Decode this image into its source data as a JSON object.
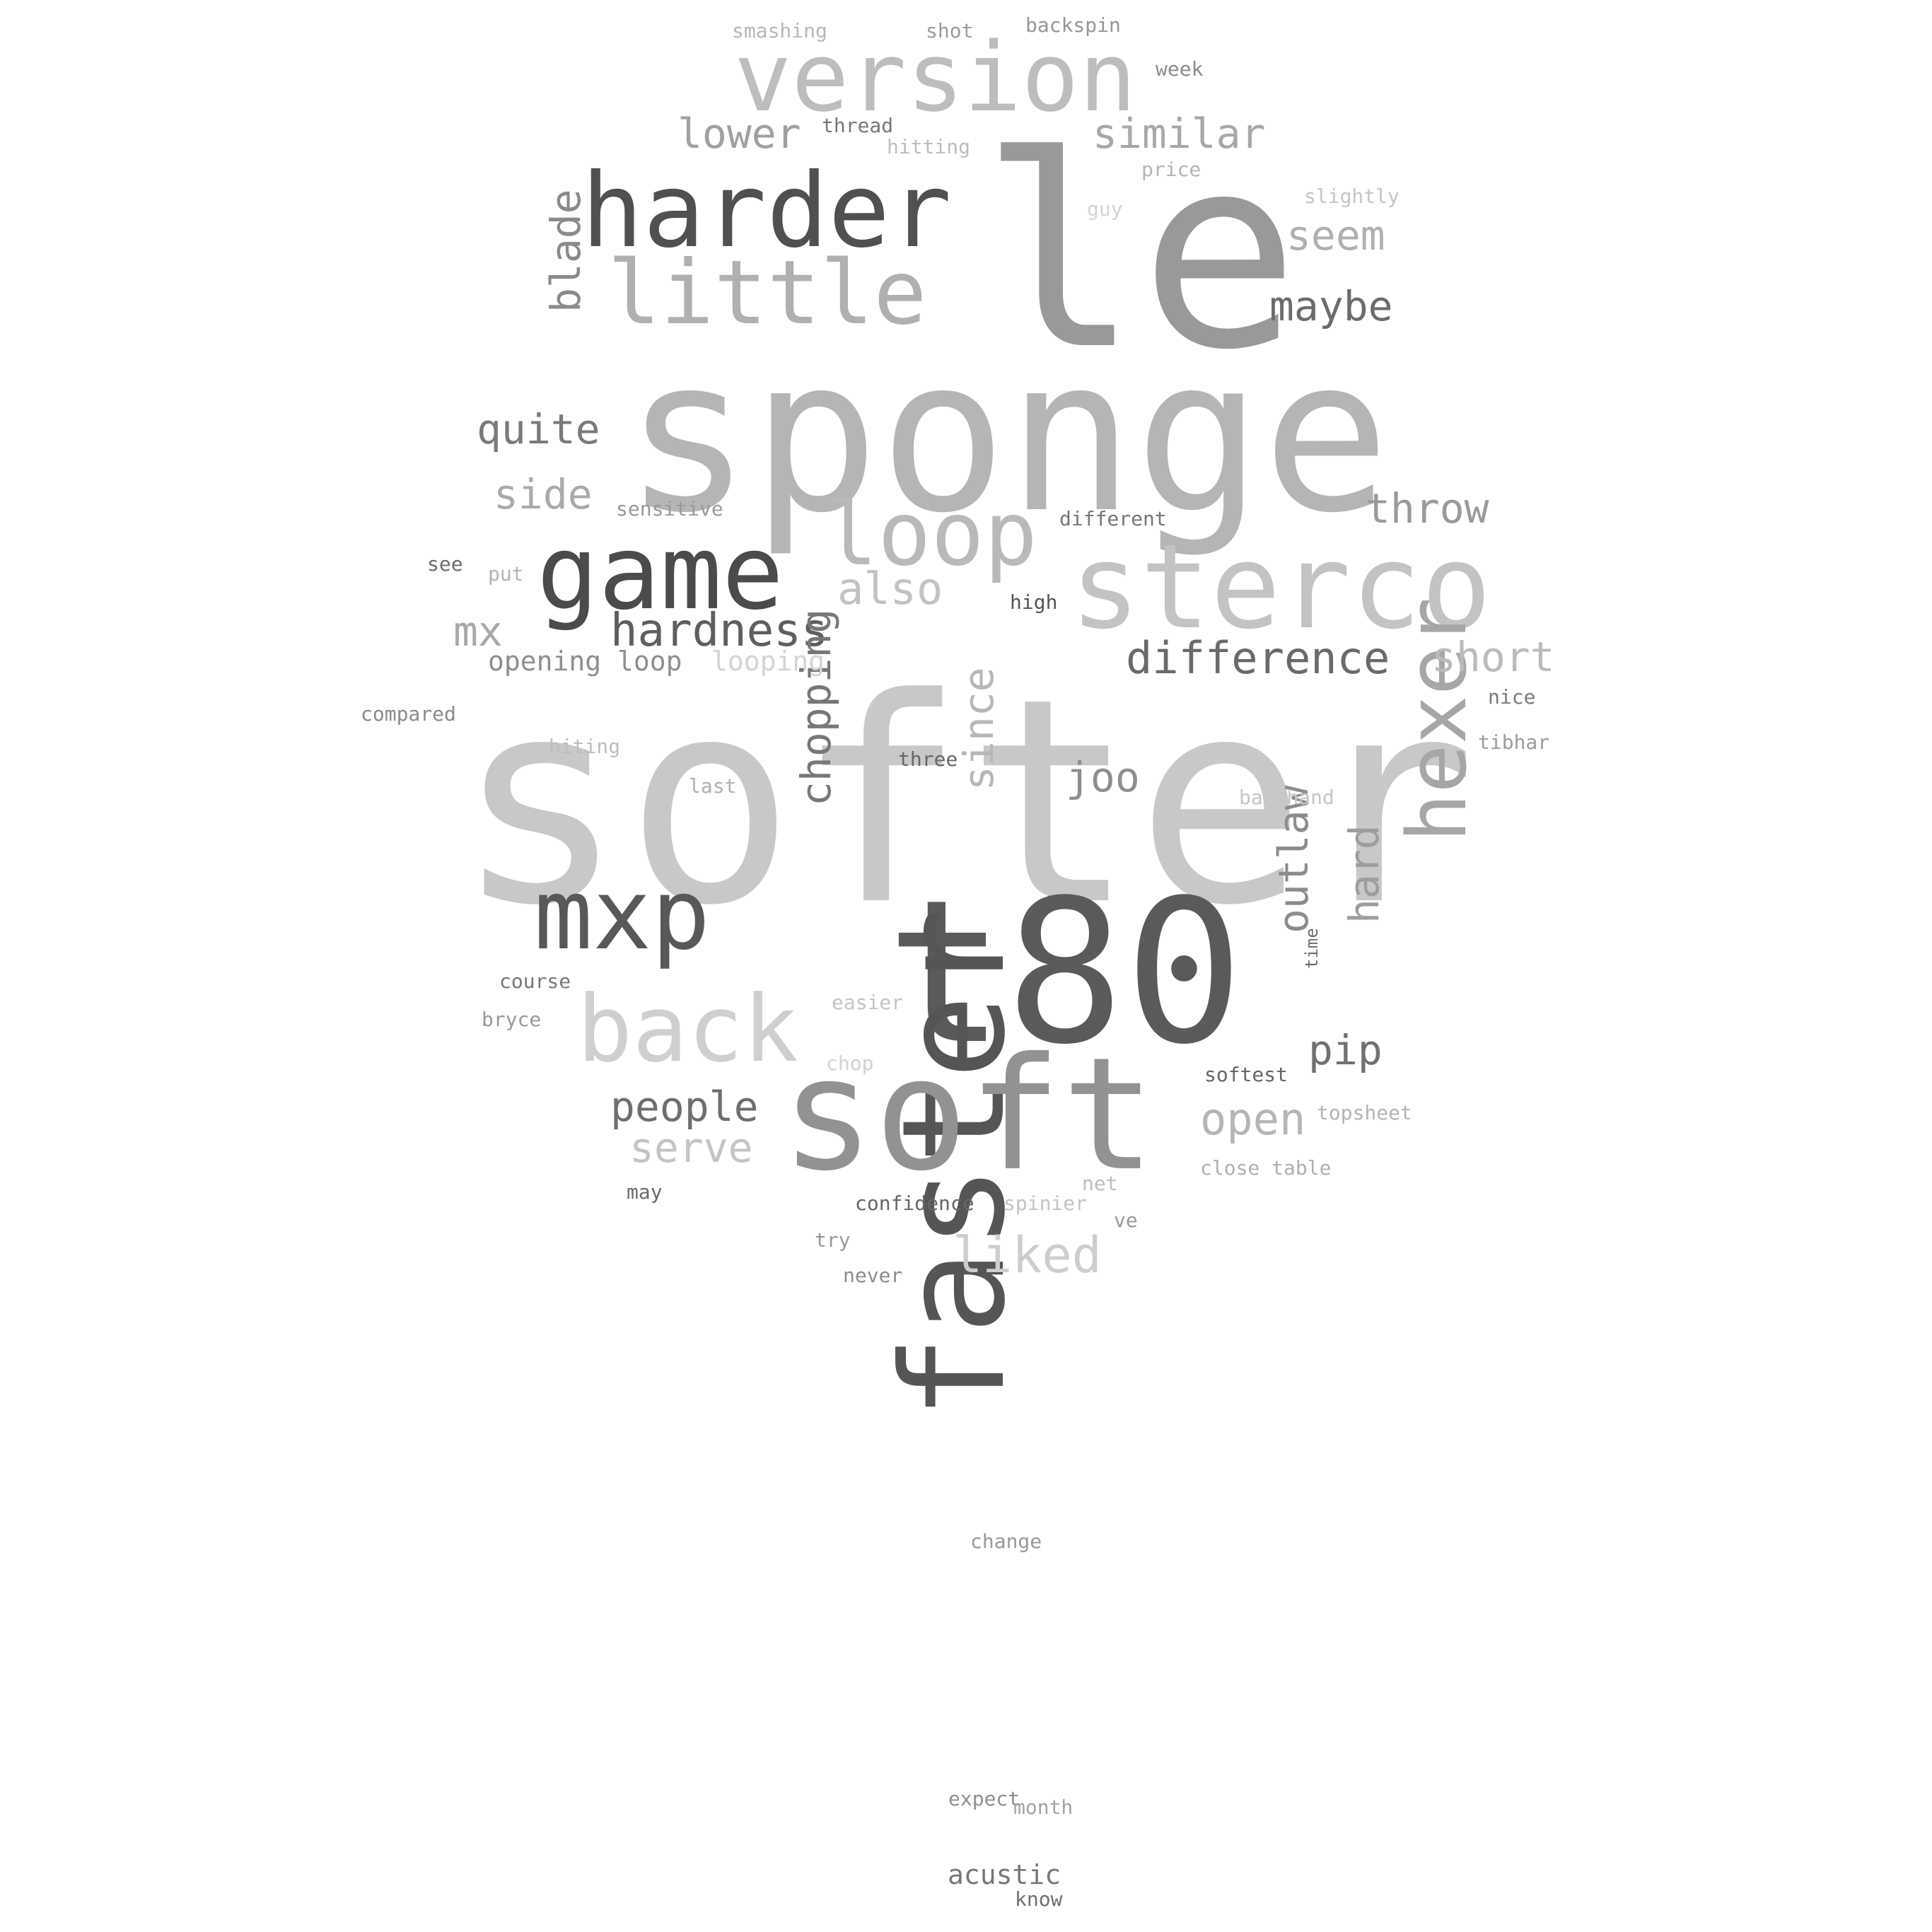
{
  "words": [
    {
      "text": "softer",
      "color": "#c8c8c8",
      "vertical": false
    },
    {
      "text": "sponge",
      "color": "#b5b5b5",
      "vertical": false
    },
    {
      "text": "le",
      "color": "#999999",
      "vertical": false
    },
    {
      "text": "t80",
      "color": "#5a5a5a",
      "vertical": false
    },
    {
      "text": "faster",
      "color": "#555555",
      "vertical": true
    },
    {
      "text": "soft",
      "color": "#929292",
      "vertical": false
    },
    {
      "text": "sterco",
      "color": "#c3c3c3",
      "vertical": false
    },
    {
      "text": "version",
      "color": "#bdbdbd",
      "vertical": false
    },
    {
      "text": "harder",
      "color": "#505050",
      "vertical": false
    },
    {
      "text": "game",
      "color": "#4b4b4b",
      "vertical": false
    },
    {
      "text": "little",
      "color": "#b0b0b0",
      "vertical": false
    },
    {
      "text": "loop",
      "color": "#b9b9b9",
      "vertical": false
    },
    {
      "text": "mxp",
      "color": "#585858",
      "vertical": false
    },
    {
      "text": "back",
      "color": "#cfcfcf",
      "vertical": false
    },
    {
      "text": "hexer",
      "color": "#a6a6a6",
      "vertical": true
    },
    {
      "text": "hardness",
      "color": "#5e5e5e",
      "vertical": false
    },
    {
      "text": "difference",
      "color": "#6a6a6a",
      "vertical": false
    },
    {
      "text": "lower",
      "color": "#a0a0a0",
      "vertical": false
    },
    {
      "text": "similar",
      "color": "#a8a8a8",
      "vertical": false
    },
    {
      "text": "blade",
      "color": "#8a8a8a",
      "vertical": true
    },
    {
      "text": "quite",
      "color": "#7a7a7a",
      "vertical": false
    },
    {
      "text": "side",
      "color": "#aaaaaa",
      "vertical": false
    },
    {
      "text": "throw",
      "color": "#9a9a9a",
      "vertical": false
    },
    {
      "text": "seem",
      "color": "#b0b0b0",
      "vertical": false
    },
    {
      "text": "maybe",
      "color": "#6c6c6c",
      "vertical": false
    },
    {
      "text": "also",
      "color": "#c2c2c2",
      "vertical": false
    },
    {
      "text": "short",
      "color": "#bbbbbb",
      "vertical": false
    },
    {
      "text": "mx",
      "color": "#a9a9a9",
      "vertical": false
    },
    {
      "text": "chopping",
      "color": "#777777",
      "vertical": true
    },
    {
      "text": "since",
      "color": "#b7b7b7",
      "vertical": true
    },
    {
      "text": "joo",
      "color": "#8e8e8e",
      "vertical": false
    },
    {
      "text": "outlaw",
      "color": "#8c8c8c",
      "vertical": true
    },
    {
      "text": "hard",
      "color": "#9d9d9d",
      "vertical": true
    },
    {
      "text": "pip",
      "color": "#707070",
      "vertical": false
    },
    {
      "text": "people",
      "color": "#6e6e6e",
      "vertical": false
    },
    {
      "text": "serve",
      "color": "#c4c4c4",
      "vertical": false
    },
    {
      "text": "open",
      "color": "#b5b5b5",
      "vertical": false
    },
    {
      "text": "liked",
      "color": "#cdcdcd",
      "vertical": false
    },
    {
      "text": "acustic",
      "color": "#777777",
      "vertical": false
    },
    {
      "text": "opening loop",
      "color": "#8e8e8e",
      "vertical": false
    },
    {
      "text": "looping",
      "color": "#d4d4d4",
      "vertical": false
    },
    {
      "text": "smashing",
      "color": "#b8b8b8",
      "vertical": false
    },
    {
      "text": "shot",
      "color": "#9a9a9a",
      "vertical": false
    },
    {
      "text": "backspin",
      "color": "#969696",
      "vertical": false
    },
    {
      "text": "week",
      "color": "#8c8c8c",
      "vertical": false
    },
    {
      "text": "thread",
      "color": "#777777",
      "vertical": false
    },
    {
      "text": "hitting",
      "color": "#bdbdbd",
      "vertical": false
    },
    {
      "text": "price",
      "color": "#b4b4b4",
      "vertical": false
    },
    {
      "text": "slightly",
      "color": "#c6c6c6",
      "vertical": false
    },
    {
      "text": "guy",
      "color": "#d2d2d2",
      "vertical": false
    },
    {
      "text": "sensitive",
      "color": "#999999",
      "vertical": false
    },
    {
      "text": "different",
      "color": "#777777",
      "vertical": false
    },
    {
      "text": "see",
      "color": "#6c6c6c",
      "vertical": false
    },
    {
      "text": "put",
      "color": "#b4b4b4",
      "vertical": false
    },
    {
      "text": "high",
      "color": "#555555",
      "vertical": false
    },
    {
      "text": "compared",
      "color": "#8a8a8a",
      "vertical": false
    },
    {
      "text": "hiting",
      "color": "#bdbdbd",
      "vertical": false
    },
    {
      "text": "nice",
      "color": "#7a7a7a",
      "vertical": false
    },
    {
      "text": "tibhar",
      "color": "#9d9d9d",
      "vertical": false
    },
    {
      "text": "three",
      "color": "#666666",
      "vertical": false
    },
    {
      "text": "last",
      "color": "#b0b0b0",
      "vertical": false
    },
    {
      "text": "backhand",
      "color": "#c6c6c6",
      "vertical": false
    },
    {
      "text": "course",
      "color": "#777777",
      "vertical": false
    },
    {
      "text": "bryce",
      "color": "#999999",
      "vertical": false
    },
    {
      "text": "easier",
      "color": "#c4c4c4",
      "vertical": false
    },
    {
      "text": "time",
      "color": "#6c6c6c",
      "vertical": true
    },
    {
      "text": "chop",
      "color": "#d2d2d2",
      "vertical": false
    },
    {
      "text": "softest",
      "color": "#666666",
      "vertical": false
    },
    {
      "text": "topsheet",
      "color": "#b4b4b4",
      "vertical": false
    },
    {
      "text": "close table",
      "color": "#b0b0b0",
      "vertical": false
    },
    {
      "text": "net",
      "color": "#bdbdbd",
      "vertical": false
    },
    {
      "text": "may",
      "color": "#6a6a6a",
      "vertical": false
    },
    {
      "text": "confidence",
      "color": "#666666",
      "vertical": false
    },
    {
      "text": "spinier",
      "color": "#c4c4c4",
      "vertical": false
    },
    {
      "text": "ve",
      "color": "#999999",
      "vertical": false
    },
    {
      "text": "try",
      "color": "#999999",
      "vertical": false
    },
    {
      "text": "never",
      "color": "#8c8c8c",
      "vertical": false
    },
    {
      "text": "change",
      "color": "#999999",
      "vertical": false
    },
    {
      "text": "expect",
      "color": "#8e8e8e",
      "vertical": false
    },
    {
      "text": "month",
      "color": "#a3a3a3",
      "vertical": false
    },
    {
      "text": "know",
      "color": "#6e6e6e",
      "vertical": false
    }
  ]
}
